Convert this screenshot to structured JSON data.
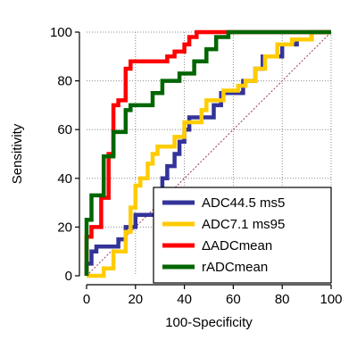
{
  "chart_data": {
    "type": "line",
    "xlabel": "100-Specificity",
    "ylabel": "Sensitivity",
    "xlim": [
      0,
      100
    ],
    "ylim": [
      0,
      100
    ],
    "x_ticks": [
      0,
      20,
      40,
      60,
      80,
      100
    ],
    "y_ticks": [
      0,
      20,
      40,
      60,
      80,
      100
    ],
    "x_tick_labels": [
      "0",
      "20",
      "40",
      "60",
      "80",
      "100"
    ],
    "y_tick_labels": [
      "0",
      "20",
      "40",
      "60",
      "80",
      "100"
    ],
    "grid": true,
    "reference_line": true,
    "legend_position": "bottom-right",
    "series": [
      {
        "name": "ADC44.5 ms5",
        "color": "#333399",
        "points": [
          [
            0,
            0
          ],
          [
            0,
            5
          ],
          [
            2,
            5
          ],
          [
            2,
            10
          ],
          [
            4,
            10
          ],
          [
            4,
            12
          ],
          [
            13,
            12
          ],
          [
            13,
            15
          ],
          [
            16,
            15
          ],
          [
            16,
            20
          ],
          [
            20,
            20
          ],
          [
            20,
            25
          ],
          [
            29,
            25
          ],
          [
            29,
            35
          ],
          [
            31,
            35
          ],
          [
            31,
            40
          ],
          [
            33,
            40
          ],
          [
            33,
            45
          ],
          [
            36,
            45
          ],
          [
            36,
            50
          ],
          [
            38,
            50
          ],
          [
            38,
            55
          ],
          [
            40,
            55
          ],
          [
            40,
            60
          ],
          [
            42,
            60
          ],
          [
            42,
            65
          ],
          [
            52,
            65
          ],
          [
            52,
            70
          ],
          [
            55,
            70
          ],
          [
            55,
            75
          ],
          [
            64,
            75
          ],
          [
            64,
            80
          ],
          [
            69,
            80
          ],
          [
            69,
            85
          ],
          [
            72,
            85
          ],
          [
            72,
            90
          ],
          [
            80,
            90
          ],
          [
            80,
            95
          ],
          [
            86,
            95
          ],
          [
            86,
            97
          ],
          [
            92,
            97
          ],
          [
            92,
            100
          ],
          [
            100,
            100
          ]
        ]
      },
      {
        "name": "ADC7.1 ms95",
        "color": "#ffcc00",
        "points": [
          [
            0,
            0
          ],
          [
            7,
            0
          ],
          [
            7,
            3
          ],
          [
            11,
            3
          ],
          [
            11,
            10
          ],
          [
            16,
            10
          ],
          [
            16,
            18
          ],
          [
            18,
            18
          ],
          [
            18,
            28
          ],
          [
            20,
            28
          ],
          [
            20,
            37
          ],
          [
            22,
            37
          ],
          [
            22,
            40
          ],
          [
            25,
            40
          ],
          [
            25,
            46
          ],
          [
            27,
            46
          ],
          [
            27,
            50
          ],
          [
            29,
            50
          ],
          [
            29,
            53
          ],
          [
            36,
            53
          ],
          [
            36,
            57
          ],
          [
            40,
            57
          ],
          [
            40,
            63
          ],
          [
            47,
            63
          ],
          [
            47,
            68
          ],
          [
            49,
            68
          ],
          [
            49,
            72
          ],
          [
            56,
            72
          ],
          [
            56,
            76
          ],
          [
            62,
            76
          ],
          [
            62,
            78
          ],
          [
            65,
            78
          ],
          [
            65,
            80
          ],
          [
            69,
            80
          ],
          [
            69,
            85
          ],
          [
            73,
            85
          ],
          [
            73,
            90
          ],
          [
            78,
            90
          ],
          [
            78,
            95
          ],
          [
            84,
            95
          ],
          [
            84,
            97
          ],
          [
            92,
            97
          ],
          [
            92,
            100
          ],
          [
            100,
            100
          ]
        ]
      },
      {
        "name": "ΔADCmean",
        "color": "#ff0000",
        "points": [
          [
            0,
            0
          ],
          [
            0,
            16
          ],
          [
            2,
            16
          ],
          [
            2,
            20
          ],
          [
            6,
            20
          ],
          [
            6,
            32
          ],
          [
            9,
            32
          ],
          [
            9,
            50
          ],
          [
            11,
            50
          ],
          [
            11,
            70
          ],
          [
            13,
            70
          ],
          [
            13,
            72
          ],
          [
            16,
            72
          ],
          [
            16,
            85
          ],
          [
            18,
            85
          ],
          [
            18,
            88
          ],
          [
            33,
            88
          ],
          [
            33,
            90
          ],
          [
            36,
            90
          ],
          [
            36,
            92
          ],
          [
            40,
            92
          ],
          [
            40,
            95
          ],
          [
            42,
            95
          ],
          [
            42,
            98
          ],
          [
            45,
            98
          ],
          [
            45,
            100
          ],
          [
            100,
            100
          ]
        ]
      },
      {
        "name": "rADCmean",
        "color": "#006600",
        "points": [
          [
            0,
            0
          ],
          [
            0,
            23
          ],
          [
            2,
            23
          ],
          [
            2,
            33
          ],
          [
            7,
            33
          ],
          [
            7,
            49
          ],
          [
            11,
            49
          ],
          [
            11,
            59
          ],
          [
            16,
            59
          ],
          [
            16,
            68
          ],
          [
            18,
            68
          ],
          [
            18,
            70
          ],
          [
            27,
            70
          ],
          [
            27,
            75
          ],
          [
            31,
            75
          ],
          [
            31,
            80
          ],
          [
            38,
            80
          ],
          [
            38,
            83
          ],
          [
            44,
            83
          ],
          [
            44,
            88
          ],
          [
            49,
            88
          ],
          [
            49,
            93
          ],
          [
            53,
            93
          ],
          [
            53,
            98
          ],
          [
            58,
            98
          ],
          [
            58,
            100
          ],
          [
            100,
            100
          ]
        ]
      }
    ]
  }
}
